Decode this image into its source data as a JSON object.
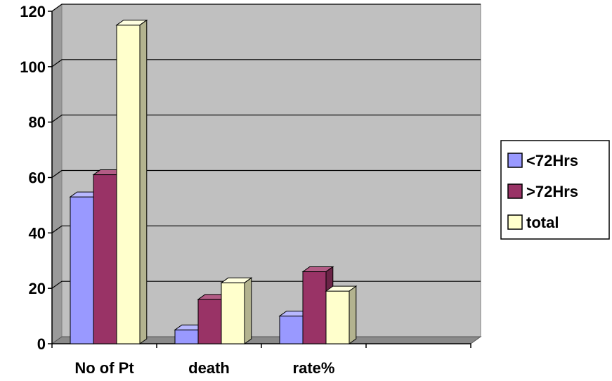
{
  "chart_data": {
    "type": "bar",
    "categories": [
      "No  of Pt",
      "death",
      "rate%"
    ],
    "series": [
      {
        "name": "<72Hrs",
        "values": [
          53,
          5,
          10
        ],
        "color": "#9999ff",
        "side_color": "#6666b3",
        "top_color": "#b8b8ff"
      },
      {
        "name": ">72Hrs",
        "values": [
          61,
          16,
          26
        ],
        "color": "#993366",
        "side_color": "#6b2447",
        "top_color": "#b35c85"
      },
      {
        "name": "total",
        "values": [
          115,
          22,
          19
        ],
        "color": "#ffffcc",
        "side_color": "#b3b38f",
        "top_color": "#ffffe0"
      }
    ],
    "y_ticks": [
      "0",
      "20",
      "40",
      "60",
      "80",
      "100",
      "120"
    ],
    "ylim": [
      0,
      120
    ],
    "grid": true,
    "legend_position": "right",
    "wall_color": "#c0c0c0",
    "extra_empty_slot": true
  }
}
